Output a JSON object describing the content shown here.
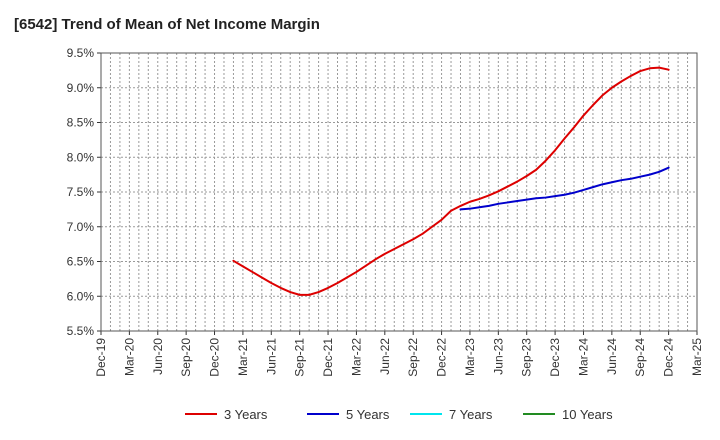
{
  "chart_data": {
    "type": "line",
    "title": "[6542]  Trend of Mean of Net Income Margin",
    "xlabel": "",
    "ylabel": "",
    "x_ticks": [
      "Dec-19",
      "Mar-20",
      "Jun-20",
      "Sep-20",
      "Dec-20",
      "Mar-21",
      "Jun-21",
      "Sep-21",
      "Dec-21",
      "Mar-22",
      "Jun-22",
      "Sep-22",
      "Dec-22",
      "Mar-23",
      "Jun-23",
      "Sep-23",
      "Dec-23",
      "Mar-24",
      "Jun-24",
      "Sep-24",
      "Dec-24",
      "Mar-25"
    ],
    "y_ticks": [
      "9.5%",
      "9.0%",
      "8.5%",
      "8.0%",
      "7.5%",
      "7.0%",
      "6.5%",
      "6.0%",
      "5.5%"
    ],
    "ylim": [
      5.5,
      9.5
    ],
    "grid": true,
    "legend_position": "bottom",
    "series": [
      {
        "name": "3 Years",
        "color": "#dd0000",
        "x": [
          "Feb-21",
          "Mar-21",
          "Apr-21",
          "May-21",
          "Jun-21",
          "Jul-21",
          "Aug-21",
          "Sep-21",
          "Oct-21",
          "Nov-21",
          "Dec-21",
          "Jan-22",
          "Feb-22",
          "Mar-22",
          "Apr-22",
          "May-22",
          "Jun-22",
          "Jul-22",
          "Aug-22",
          "Sep-22",
          "Oct-22",
          "Nov-22",
          "Dec-22",
          "Jan-23",
          "Feb-23",
          "Mar-23",
          "Apr-23",
          "May-23",
          "Jun-23",
          "Jul-23",
          "Aug-23",
          "Sep-23",
          "Oct-23",
          "Nov-23",
          "Dec-23",
          "Jan-24",
          "Feb-24",
          "Mar-24",
          "Apr-24",
          "May-24",
          "Jun-24",
          "Jul-24",
          "Aug-24",
          "Sep-24",
          "Oct-24",
          "Nov-24",
          "Dec-24"
        ],
        "values": [
          6.51,
          6.43,
          6.35,
          6.27,
          6.19,
          6.12,
          6.06,
          6.02,
          6.02,
          6.06,
          6.12,
          6.19,
          6.27,
          6.35,
          6.44,
          6.53,
          6.61,
          6.68,
          6.75,
          6.82,
          6.9,
          7.0,
          7.1,
          7.23,
          7.3,
          7.36,
          7.4,
          7.45,
          7.51,
          7.58,
          7.65,
          7.73,
          7.82,
          7.95,
          8.1,
          8.27,
          8.43,
          8.6,
          8.75,
          8.89,
          9.0,
          9.09,
          9.17,
          9.24,
          9.28,
          9.29,
          9.26
        ]
      },
      {
        "name": "5 Years",
        "color": "#0000cc",
        "x": [
          "Feb-23",
          "Mar-23",
          "Apr-23",
          "May-23",
          "Jun-23",
          "Jul-23",
          "Aug-23",
          "Sep-23",
          "Oct-23",
          "Nov-23",
          "Dec-23",
          "Jan-24",
          "Feb-24",
          "Mar-24",
          "Apr-24",
          "May-24",
          "Jun-24",
          "Jul-24",
          "Aug-24",
          "Sep-24",
          "Oct-24",
          "Nov-24",
          "Dec-24"
        ],
        "values": [
          7.25,
          7.26,
          7.28,
          7.3,
          7.33,
          7.35,
          7.37,
          7.39,
          7.41,
          7.42,
          7.44,
          7.46,
          7.49,
          7.53,
          7.57,
          7.61,
          7.64,
          7.67,
          7.69,
          7.72,
          7.75,
          7.79,
          7.85
        ]
      },
      {
        "name": "7 Years",
        "color": "#00e5ee",
        "x": [],
        "values": []
      },
      {
        "name": "10 Years",
        "color": "#228b22",
        "x": [],
        "values": []
      }
    ]
  }
}
